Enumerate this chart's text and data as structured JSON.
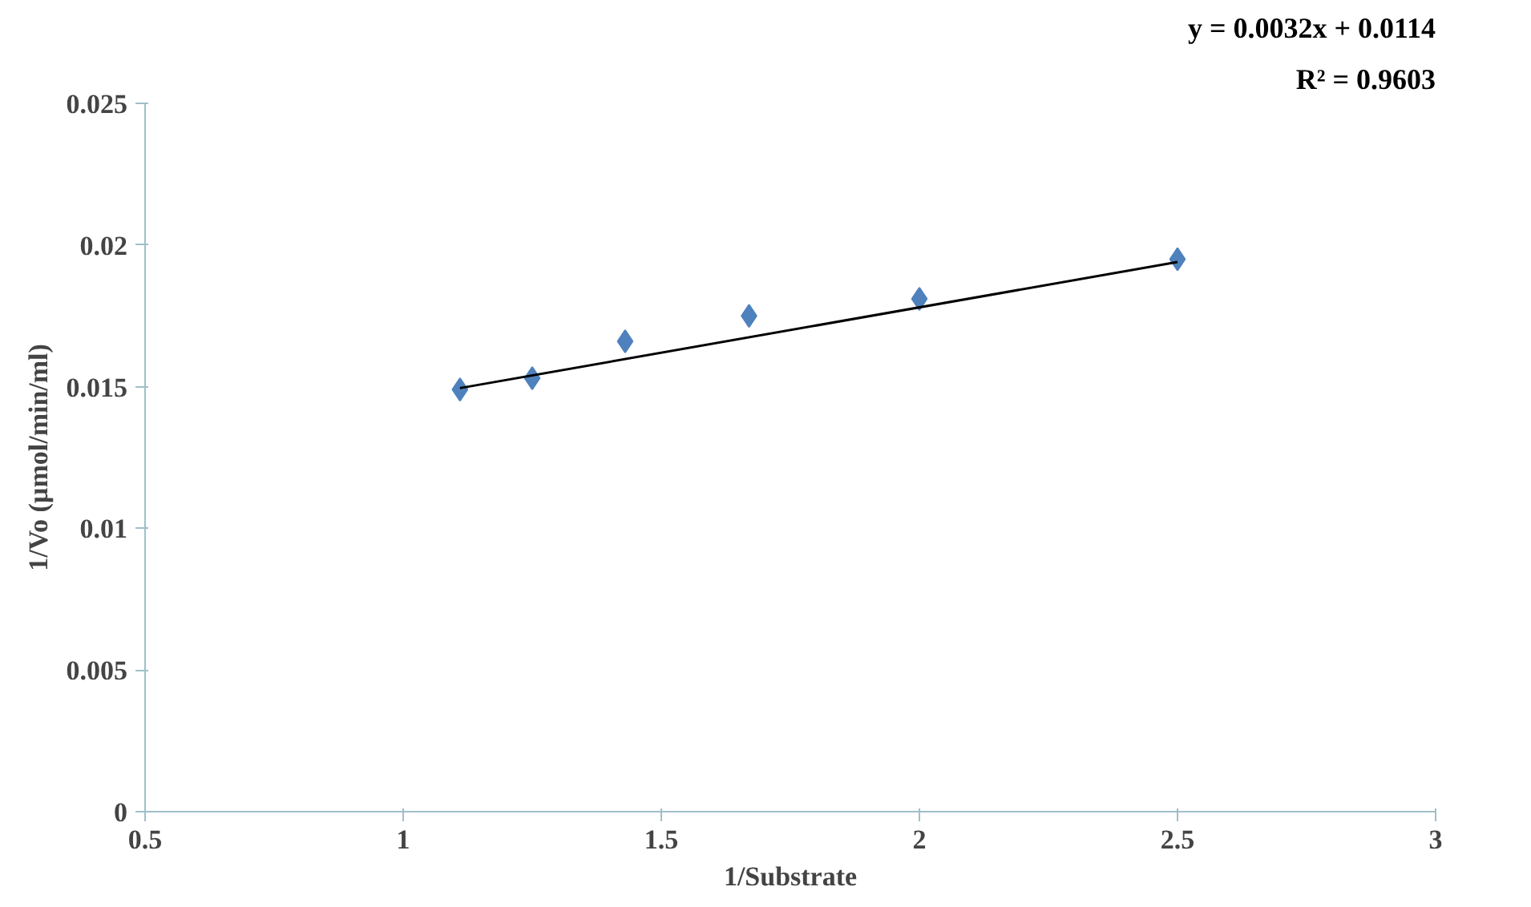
{
  "chart_data": {
    "type": "scatter",
    "xlabel": "1/Substrate",
    "ylabel": "1/Vo (µmol/min/ml)",
    "annotations": [
      "y = 0.0032x + 0.0114",
      "R² = 0.9603"
    ],
    "xlim": [
      0.5,
      3
    ],
    "xticks": [
      0.5,
      1,
      1.5,
      2,
      2.5,
      3
    ],
    "ylim": [
      0,
      0.025
    ],
    "yticks": [
      0,
      0.005,
      0.01,
      0.015,
      0.02,
      0.025
    ],
    "grid": false,
    "marker": "diamond",
    "series": [
      {
        "type": "scatter",
        "color": "#4f81bd",
        "x": [
          1.11,
          1.25,
          1.43,
          1.67,
          2,
          2.5
        ],
        "values": [
          0.0149,
          0.0153,
          0.0166,
          0.0175,
          0.0181,
          0.0195
        ]
      },
      {
        "type": "line",
        "color": "#000000",
        "marker": "none",
        "x": [
          1.11,
          2.5
        ],
        "values": [
          0.01495,
          0.0194
        ]
      }
    ]
  }
}
